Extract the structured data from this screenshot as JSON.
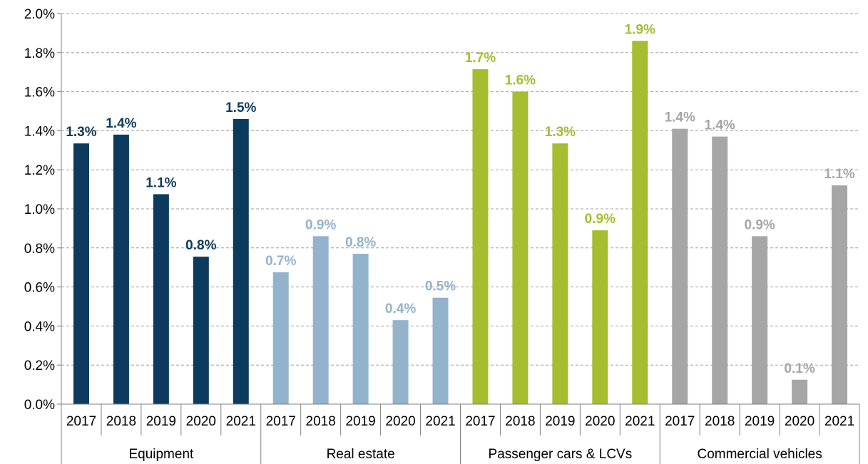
{
  "chart_data": {
    "type": "bar",
    "title": "",
    "xlabel": "",
    "ylabel": "",
    "ylim": [
      0,
      2.0
    ],
    "yticks": [
      "0.0%",
      "0.2%",
      "0.4%",
      "0.6%",
      "0.8%",
      "1.0%",
      "1.2%",
      "1.4%",
      "1.6%",
      "1.8%",
      "2.0%"
    ],
    "grid": "horizontal dashed",
    "years": [
      "2017",
      "2018",
      "2019",
      "2020",
      "2021"
    ],
    "groups": [
      {
        "name": "Equipment",
        "color": "#0d3b5e",
        "values": [
          1.335,
          1.38,
          1.075,
          0.755,
          1.46
        ],
        "labels": [
          "1.3%",
          "1.4%",
          "1.1%",
          "0.8%",
          "1.5%"
        ]
      },
      {
        "name": "Real estate",
        "color": "#93b3cc",
        "values": [
          0.675,
          0.86,
          0.77,
          0.43,
          0.545
        ],
        "labels": [
          "0.7%",
          "0.9%",
          "0.8%",
          "0.4%",
          "0.5%"
        ]
      },
      {
        "name": "Passenger cars & LCVs",
        "color": "#a5bd2e",
        "values": [
          1.715,
          1.6,
          1.335,
          0.89,
          1.86
        ],
        "labels": [
          "1.7%",
          "1.6%",
          "1.3%",
          "0.9%",
          "1.9%"
        ]
      },
      {
        "name": "Commercial vehicles",
        "color": "#a6a6a6",
        "values": [
          1.41,
          1.37,
          0.86,
          0.125,
          1.12
        ],
        "labels": [
          "1.4%",
          "1.4%",
          "0.9%",
          "0.1%",
          "1.1%"
        ]
      }
    ]
  }
}
